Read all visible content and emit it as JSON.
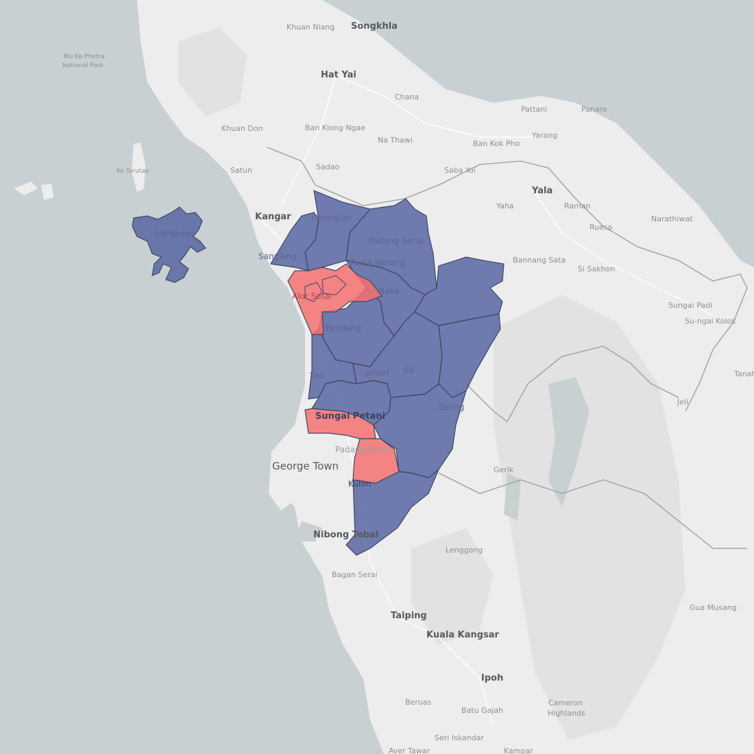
{
  "map": {
    "colors": {
      "sea": "#c9d0d3",
      "land": "#ededed",
      "district_blue": "#5362a0",
      "district_red": "#f57070"
    },
    "district_labels": {
      "langkawi": "Langkawi",
      "changlun": "Changlun",
      "padang_sanai": "Padang Sanai",
      "kuala_nerang": "Kuala Nerang",
      "sanglang": "Sanglang",
      "alor_setar": "Alor Setar",
      "naka": "Naka",
      "pendang": "Pendang",
      "yan": "Yan",
      "jeneri": "Jeneri",
      "sik": "Sik",
      "baling": "Baling",
      "sungai_petani": "Sungai Petani",
      "padang_serai": "Padang Serai",
      "kulim": "Kulim"
    },
    "place_labels": {
      "khuan_niang": "Khuan Niang",
      "songkhla": "Songkhla",
      "mu_ko_phetra_1": "Mu Ko Phetra",
      "mu_ko_phetra_2": "National Park",
      "hat_yai": "Hat Yai",
      "chana": "Chana",
      "pattani": "Pattani",
      "panare": "Panare",
      "khuan_don": "Khuan Don",
      "ban_klong_ngae": "Ban Klong Ngae",
      "yarang": "Yarang",
      "na_thawi": "Na Thawi",
      "ban_kok_pho": "Ban Kok Pho",
      "satun": "Satun",
      "ko_tarutao": "Ko Tarutao",
      "sadao": "Sadao",
      "saba_yoi": "Saba Yoi",
      "yala": "Yala",
      "yaha": "Yaha",
      "raman": "Raman",
      "kangar": "Kangar",
      "rueso": "Rueso",
      "narathiwat": "Narathiwat",
      "bannang_sata": "Bannang Sata",
      "si_sakhon": "Si Sakhon",
      "sungai_padi": "Sungai Padi",
      "su_ngai_kolok": "Su-ngai Kolok",
      "tanah": "Tanah",
      "jeli": "Jeli",
      "george_town": "George Town",
      "gerik": "Gerik",
      "nibong_tebal": "Nibong Tebal",
      "lenggong": "Lenggong",
      "bagan_serai": "Bagan Serai",
      "taiping": "Taiping",
      "gua_musang": "Gua Musang",
      "kuala_kangsar": "Kuala Kangsar",
      "ipoh": "Ipoh",
      "beruas": "Beruas",
      "batu_gajah": "Batu Gajah",
      "cameron_1": "Cameron",
      "cameron_2": "Highlands",
      "seri_iskandar": "Seri Iskandar",
      "ayer_tawar": "Ayer Tawar",
      "kampar": "Kampar"
    }
  }
}
